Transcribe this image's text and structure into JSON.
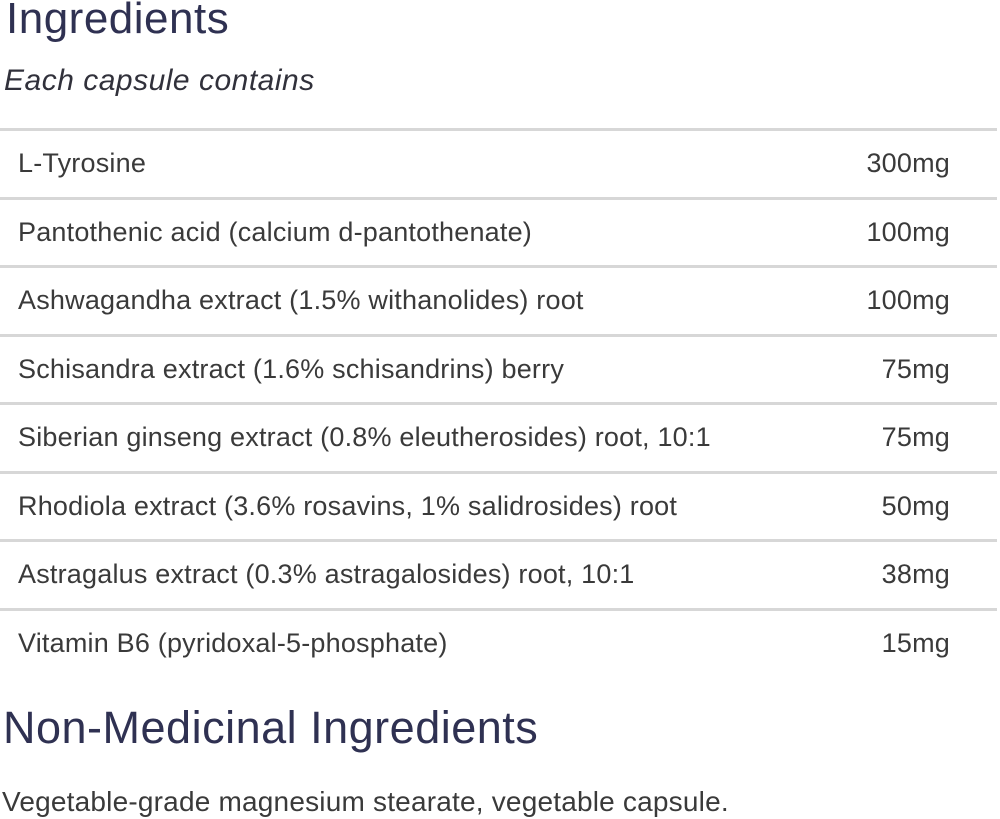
{
  "header": {
    "title": "Ingredients",
    "subtitle": "Each capsule contains"
  },
  "ingredients_table": {
    "rows": [
      {
        "name": "L-Tyrosine",
        "amount": "300mg"
      },
      {
        "name": "Pantothenic acid (calcium d-pantothenate)",
        "amount": "100mg"
      },
      {
        "name": "Ashwagandha extract (1.5% withanolides) root",
        "amount": "100mg"
      },
      {
        "name": "Schisandra extract (1.6% schisandrins) berry",
        "amount": "75mg"
      },
      {
        "name": "Siberian ginseng extract (0.8% eleutherosides) root, 10:1",
        "amount": "75mg"
      },
      {
        "name": "Rhodiola extract (3.6% rosavins, 1% salidrosides) root",
        "amount": "50mg"
      },
      {
        "name": "Astragalus extract (0.3% astragalosides) root, 10:1",
        "amount": "38mg"
      },
      {
        "name": "Vitamin B6 (pyridoxal-5-phosphate)",
        "amount": "15mg"
      }
    ]
  },
  "non_medicinal": {
    "title": "Non-Medicinal Ingredients",
    "text": "Vegetable-grade magnesium stearate, vegetable capsule."
  },
  "colors": {
    "heading_navy": "#2f3152",
    "body_text": "#3a3a3a",
    "divider_gray": "#d7d7d7"
  }
}
